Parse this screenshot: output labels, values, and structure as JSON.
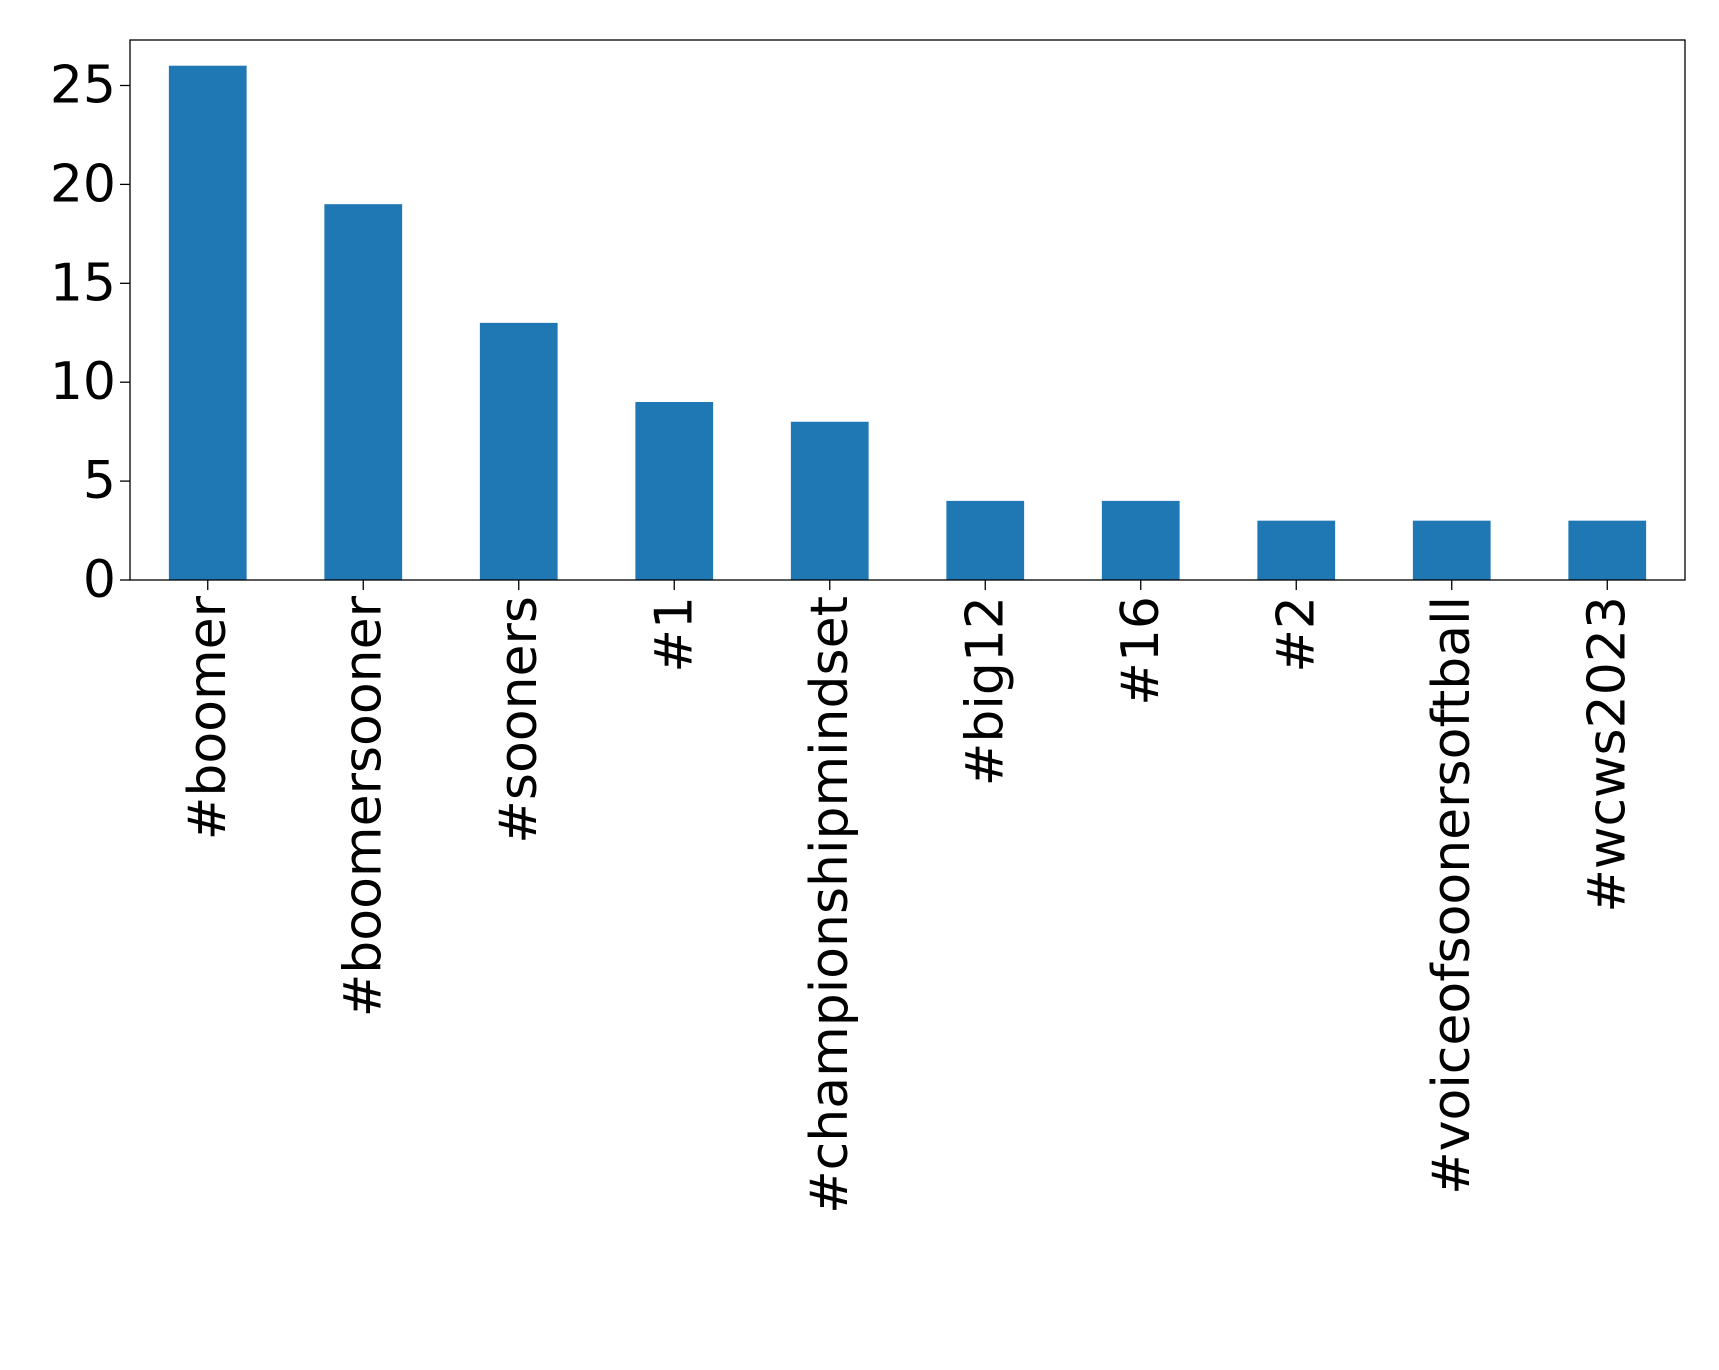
{
  "chart_data": {
    "type": "bar",
    "title": "",
    "xlabel": "",
    "ylabel": "",
    "categories": [
      "#boomer",
      "#boomersooner",
      "#sooners",
      "#1",
      "#championshipmindset",
      "#big12",
      "#16",
      "#2",
      "#voiceofsoonersoftball",
      "#wcws2023"
    ],
    "values": [
      26,
      19,
      13,
      9,
      8,
      4,
      4,
      3,
      3,
      3
    ],
    "ylim": [
      0,
      27.3
    ],
    "yticks": [
      0,
      5,
      10,
      15,
      20,
      25
    ],
    "bar_color": "#1f77b4",
    "grid": false,
    "legend": "none",
    "x_tick_rotation": "vertical"
  }
}
